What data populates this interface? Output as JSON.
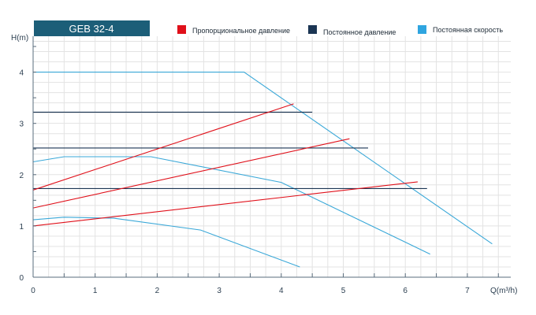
{
  "chart_data": {
    "type": "line",
    "title": "GEB 32-4",
    "xlabel": "Q(m³/h)",
    "ylabel": "H(m)",
    "xlim": [
      0,
      7.7
    ],
    "ylim": [
      0,
      4.7
    ],
    "x_ticks": [
      "0",
      "1",
      "2",
      "3",
      "4",
      "5",
      "6",
      "7"
    ],
    "y_ticks": [
      "0",
      "1",
      "2",
      "3",
      "4"
    ],
    "grid": true,
    "legend_position": "top",
    "legend": [
      {
        "label": "Пропорциональное давление",
        "color": "#e0101a"
      },
      {
        "label": "Постоянное давление",
        "color": "#1b3553"
      },
      {
        "label": "Постоянная скорость",
        "color": "#2fa5e0"
      }
    ],
    "series": [
      {
        "group": "speed",
        "color": "#3aa8d8",
        "points": [
          [
            0,
            4.0
          ],
          [
            3.4,
            4.0
          ],
          [
            7.4,
            0.65
          ]
        ]
      },
      {
        "group": "speed",
        "color": "#3aa8d8",
        "points": [
          [
            0,
            2.25
          ],
          [
            0.5,
            2.35
          ],
          [
            1.9,
            2.35
          ],
          [
            4.0,
            1.85
          ],
          [
            6.4,
            0.45
          ]
        ]
      },
      {
        "group": "speed",
        "color": "#3aa8d8",
        "points": [
          [
            0,
            1.12
          ],
          [
            0.5,
            1.17
          ],
          [
            1.3,
            1.15
          ],
          [
            2.7,
            0.92
          ],
          [
            4.3,
            0.2
          ]
        ]
      },
      {
        "group": "pressure",
        "color": "#1b3553",
        "points": [
          [
            0,
            3.22
          ],
          [
            4.5,
            3.22
          ]
        ]
      },
      {
        "group": "pressure",
        "color": "#1b3553",
        "points": [
          [
            0,
            2.52
          ],
          [
            5.4,
            2.52
          ]
        ]
      },
      {
        "group": "pressure",
        "color": "#1b3553",
        "points": [
          [
            0,
            1.73
          ],
          [
            6.35,
            1.73
          ]
        ]
      },
      {
        "group": "proportional",
        "color": "#e0101a",
        "points": [
          [
            0,
            1.7
          ],
          [
            4.2,
            3.38
          ]
        ]
      },
      {
        "group": "proportional",
        "color": "#e0101a",
        "points": [
          [
            0,
            1.35
          ],
          [
            5.1,
            2.7
          ]
        ]
      },
      {
        "group": "proportional",
        "color": "#e0101a",
        "points": [
          [
            0,
            1.0
          ],
          [
            6.2,
            1.86
          ]
        ]
      }
    ]
  }
}
